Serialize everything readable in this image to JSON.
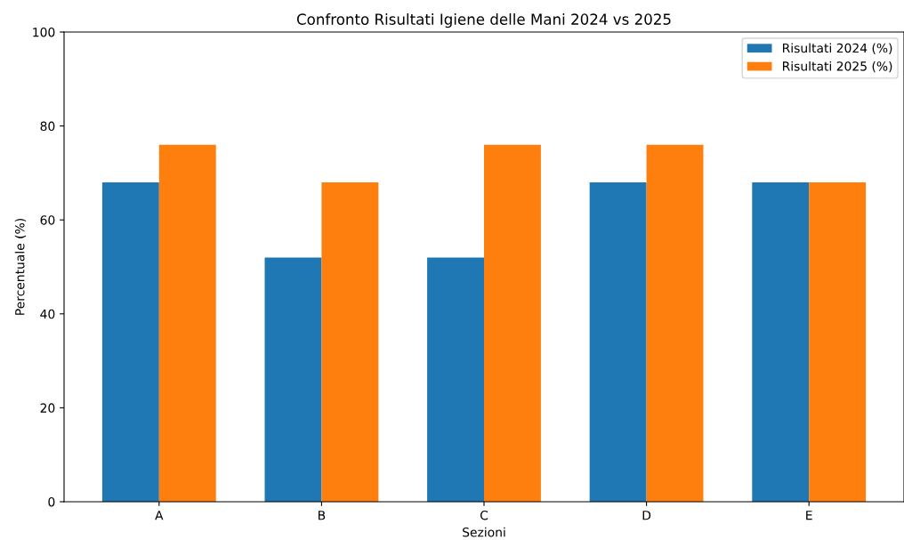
{
  "chart_data": {
    "type": "bar",
    "title": "Confronto Risultati Igiene delle Mani 2024 vs 2025",
    "xlabel": "Sezioni",
    "ylabel": "Percentuale (%)",
    "categories": [
      "A",
      "B",
      "C",
      "D",
      "E"
    ],
    "series": [
      {
        "name": "Risultati 2024 (%)",
        "color": "#1f77b4",
        "values": [
          68,
          52,
          52,
          68,
          68
        ]
      },
      {
        "name": "Risultati 2025 (%)",
        "color": "#ff7f0e",
        "values": [
          76,
          68,
          76,
          76,
          68
        ]
      }
    ],
    "ylim": [
      0,
      100
    ],
    "yticks": [
      0,
      20,
      40,
      60,
      80,
      100
    ],
    "grid": false,
    "legend": "top right"
  }
}
